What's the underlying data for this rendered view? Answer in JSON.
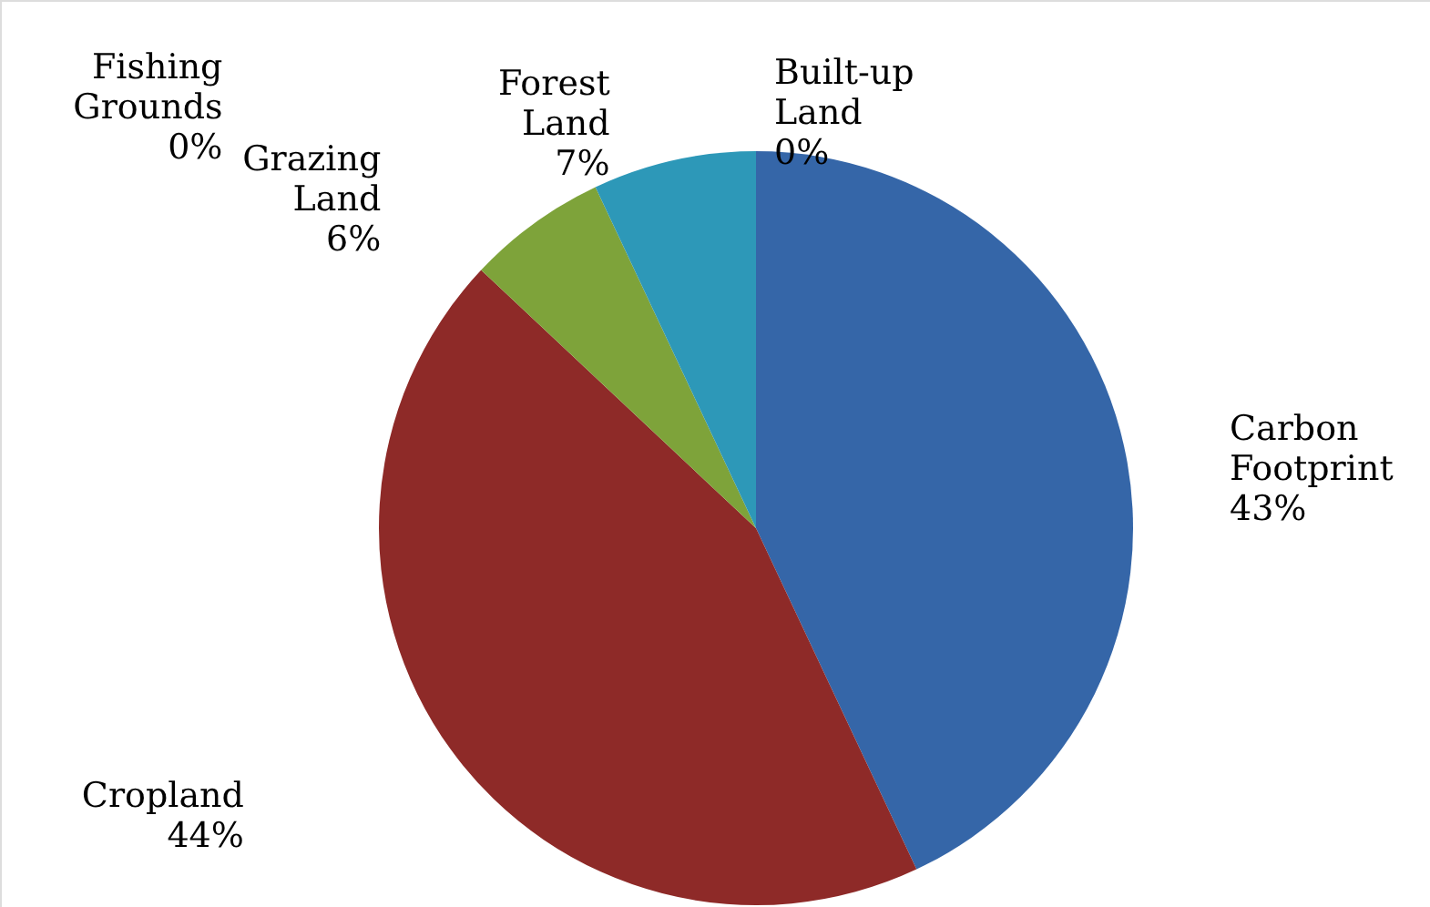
{
  "chart_data": {
    "type": "pie",
    "categories": [
      "Built-up Land",
      "Carbon Footprint",
      "Cropland",
      "Grazing Land",
      "Fishing Grounds",
      "Forest Land"
    ],
    "values": [
      0,
      43,
      44,
      6,
      0,
      7
    ],
    "colors": [
      "#e8872f",
      "#3566a8",
      "#8e2a28",
      "#7ea33a",
      "#6e5596",
      "#2d98b8"
    ],
    "value_labels": [
      "0%",
      "43%",
      "44%",
      "6%",
      "0%",
      "7%"
    ]
  }
}
